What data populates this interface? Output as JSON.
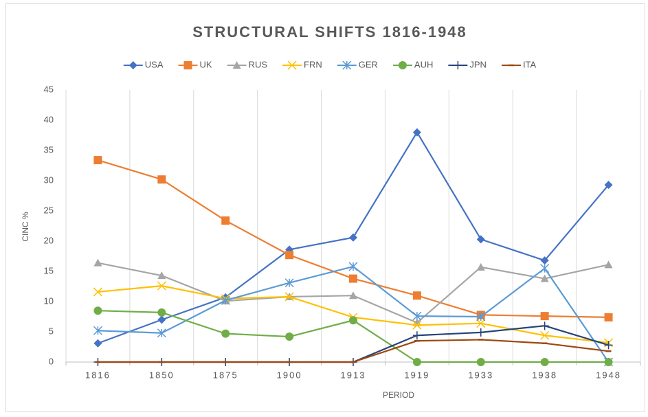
{
  "chart_data": {
    "type": "line",
    "title": "STRUCTURAL SHIFTS 1816-1948",
    "x_label": "PERIOD",
    "y_label": "CINC %",
    "categories": [
      "1816",
      "1850",
      "1875",
      "1900",
      "1913",
      "1919",
      "1933",
      "1938",
      "1948"
    ],
    "series": [
      {
        "name": "USA",
        "color": "#4472c4",
        "marker": "diamond",
        "values": [
          3.1,
          7.0,
          10.7,
          18.6,
          20.6,
          38.0,
          20.3,
          16.8,
          29.3
        ]
      },
      {
        "name": "UK",
        "color": "#ed7d31",
        "marker": "square",
        "values": [
          33.4,
          30.2,
          23.4,
          17.7,
          13.8,
          11.0,
          7.8,
          7.6,
          7.4
        ]
      },
      {
        "name": "RUS",
        "color": "#a5a5a5",
        "marker": "triangle",
        "values": [
          16.4,
          14.3,
          10.1,
          10.8,
          11.0,
          6.5,
          15.7,
          13.8,
          16.1
        ]
      },
      {
        "name": "FRN",
        "color": "#ffc000",
        "marker": "x",
        "values": [
          11.6,
          12.6,
          10.5,
          10.8,
          7.4,
          6.1,
          6.4,
          4.4,
          3.2
        ]
      },
      {
        "name": "GER",
        "color": "#5b9bd5",
        "marker": "star",
        "values": [
          5.2,
          4.8,
          10.2,
          13.1,
          15.8,
          7.6,
          7.5,
          15.5,
          0
        ]
      },
      {
        "name": "AUH",
        "color": "#70ad47",
        "marker": "circle",
        "values": [
          8.5,
          8.2,
          4.7,
          4.2,
          6.9,
          0,
          0,
          0,
          0
        ]
      },
      {
        "name": "JPN",
        "color": "#264478",
        "marker": "plus",
        "values": [
          0,
          0,
          0,
          0,
          0,
          4.4,
          4.9,
          6.0,
          2.8
        ]
      },
      {
        "name": "ITA",
        "color": "#9e480e",
        "marker": "dash",
        "values": [
          0,
          0,
          0,
          0,
          0,
          3.5,
          3.7,
          3.1,
          1.8
        ]
      }
    ],
    "ylim": [
      0,
      45
    ],
    "yticks": [
      0,
      5,
      10,
      15,
      20,
      25,
      30,
      35,
      40,
      45
    ],
    "grid": true,
    "legend": "top"
  }
}
